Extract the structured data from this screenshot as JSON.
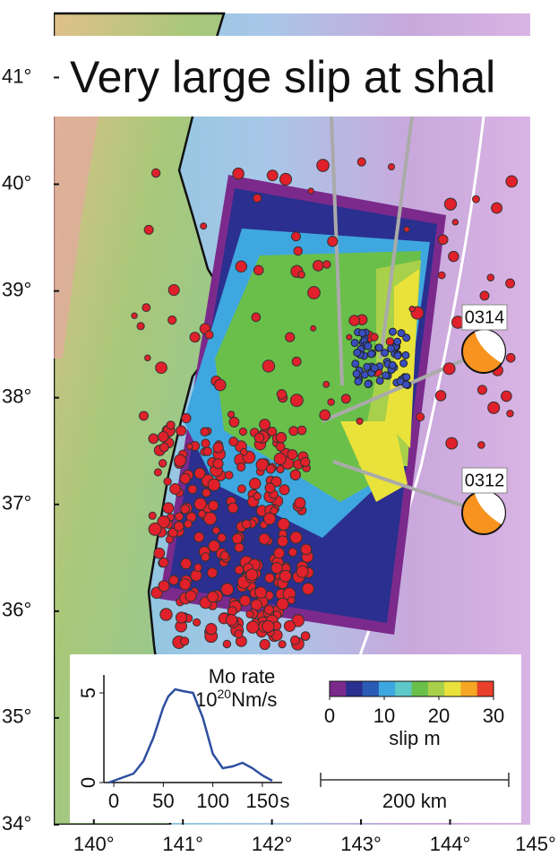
{
  "title": "Very large slip at shal",
  "map": {
    "latlim": [
      34,
      41.6
    ],
    "lonlim": [
      139.55,
      144.9
    ],
    "lat_ticks": [
      {
        "value": 41,
        "label": "41°"
      },
      {
        "value": 40,
        "label": "40°"
      },
      {
        "value": 39,
        "label": "39°"
      },
      {
        "value": 38,
        "label": "38°"
      },
      {
        "value": 37,
        "label": "37°"
      },
      {
        "value": 36,
        "label": "36°"
      },
      {
        "value": 35,
        "label": "35°"
      },
      {
        "value": 34,
        "label": "34°"
      }
    ],
    "lon_ticks": [
      {
        "value": 140,
        "label": "140°"
      },
      {
        "value": 141,
        "label": "141°"
      },
      {
        "value": 142,
        "label": "142°"
      },
      {
        "value": 143,
        "label": "143°"
      },
      {
        "value": 144,
        "label": "144°"
      },
      {
        "value": 145,
        "label": "145°"
      }
    ],
    "events": [
      "0314",
      "0312"
    ]
  },
  "chart_data": {
    "type": "line",
    "title": "Mo rate",
    "unit_base": "10",
    "unit_exp": "20",
    "unit": "Nm/s",
    "xlabel": "s",
    "x": [
      -5,
      0,
      10,
      20,
      30,
      40,
      50,
      55,
      62,
      70,
      80,
      90,
      100,
      110,
      120,
      130,
      140,
      150,
      160
    ],
    "values": [
      0,
      0.1,
      0.3,
      0.5,
      1.2,
      2.5,
      4.2,
      4.8,
      5.2,
      5.1,
      5.0,
      3.6,
      1.6,
      0.8,
      0.9,
      1.1,
      0.8,
      0.4,
      0.1
    ],
    "color": "#2e4fa0",
    "xlim": [
      -10,
      170
    ],
    "ylim": [
      0,
      6
    ],
    "xticks": [
      0,
      50,
      100,
      150
    ],
    "yticks": [
      0,
      5
    ]
  },
  "colorbar": {
    "lim": [
      0,
      30
    ],
    "ticks": [
      0,
      10,
      20,
      30
    ],
    "label": "slip m",
    "colors": [
      "#7b2a8c",
      "#2b2f8f",
      "#2a5bb5",
      "#3fa7df",
      "#5fc8c8",
      "#6abf4b",
      "#a8d04a",
      "#e9e23a",
      "#f5a623",
      "#e8402a"
    ]
  },
  "scale_bar": "200 km"
}
